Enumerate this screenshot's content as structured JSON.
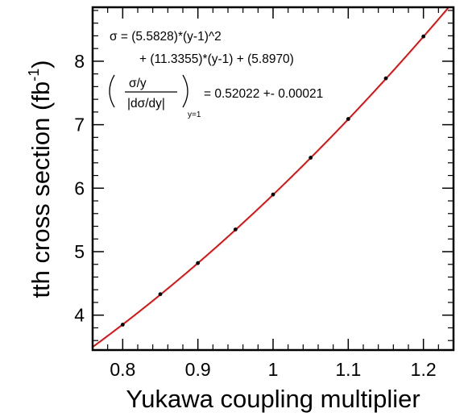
{
  "chart_data": {
    "type": "scatter",
    "xlabel": "Yukawa coupling multiplier",
    "ylabel": "tth cross section (fb",
    "ylabel_sup": "-1",
    "ylabel_close": ")",
    "xlim": [
      0.76,
      1.24
    ],
    "ylim": [
      3.45,
      8.85
    ],
    "xticks": [
      0.8,
      0.9,
      1.0,
      1.1,
      1.2
    ],
    "xtick_labels": [
      "0.8",
      "0.9",
      "1",
      "1.1",
      "1.2"
    ],
    "yticks": [
      4,
      5,
      6,
      7,
      8
    ],
    "ytick_labels": [
      "4",
      "5",
      "6",
      "7",
      "8"
    ],
    "grid": false,
    "series": [
      {
        "kind": "points",
        "x": [
          0.8,
          0.85,
          0.9,
          0.95,
          1.0,
          1.05,
          1.1,
          1.15,
          1.2
        ],
        "y": [
          3.85,
          4.33,
          4.82,
          5.35,
          5.9,
          6.48,
          7.09,
          7.73,
          8.39
        ],
        "color": "#000000"
      },
      {
        "kind": "fit",
        "formula": {
          "a": 5.5828,
          "b": 11.3355,
          "c": 5.897
        },
        "color": "#dd1111"
      }
    ],
    "annotations": {
      "line1": "σ = (5.5828)*(y-1)^2",
      "line2": "+ (11.3355)*(y-1) + (5.8970)",
      "frac_num": "σ/y",
      "frac_den": "|dσ/dy|",
      "subscript": "y=1",
      "result": "= 0.52022 +- 0.00021"
    }
  }
}
